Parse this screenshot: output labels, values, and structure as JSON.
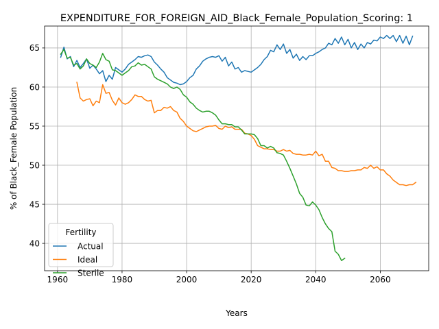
{
  "chart_data": {
    "type": "line",
    "title": "EXPENDITURE_FOR_FOREIGN_AID_Black_Female_Population_Scoring: 1",
    "xlabel": "Years",
    "ylabel": "% of Black_Female Population",
    "xlim": [
      1956,
      2075
    ],
    "ylim": [
      36.5,
      67.8
    ],
    "xticks": [
      1960,
      1980,
      2000,
      2020,
      2040,
      2060
    ],
    "yticks": [
      40,
      45,
      50,
      55,
      60,
      65
    ],
    "grid": true,
    "legend": {
      "title": "Fertility",
      "placement": "lower-left"
    },
    "series": [
      {
        "name": "Actual",
        "color": "#1f77b4",
        "points": [
          [
            1961,
            63.8
          ],
          [
            1962,
            65.1
          ],
          [
            1963,
            63.6
          ],
          [
            1964,
            63.9
          ],
          [
            1965,
            62.6
          ],
          [
            1966,
            63.4
          ],
          [
            1967,
            62.5
          ],
          [
            1968,
            63.0
          ],
          [
            1969,
            63.6
          ],
          [
            1970,
            62.4
          ],
          [
            1971,
            62.8
          ],
          [
            1972,
            62.3
          ],
          [
            1973,
            61.7
          ],
          [
            1974,
            62.1
          ],
          [
            1975,
            60.7
          ],
          [
            1976,
            61.5
          ],
          [
            1977,
            61.0
          ],
          [
            1978,
            62.5
          ],
          [
            1979,
            62.2
          ],
          [
            1980,
            61.9
          ],
          [
            1981,
            62.3
          ],
          [
            1982,
            62.9
          ],
          [
            1983,
            63.2
          ],
          [
            1984,
            63.5
          ],
          [
            1985,
            63.9
          ],
          [
            1986,
            63.8
          ],
          [
            1987,
            64.0
          ],
          [
            1988,
            64.1
          ],
          [
            1989,
            63.9
          ],
          [
            1990,
            63.2
          ],
          [
            1991,
            62.8
          ],
          [
            1992,
            62.3
          ],
          [
            1993,
            61.9
          ],
          [
            1994,
            61.2
          ],
          [
            1995,
            60.9
          ],
          [
            1996,
            60.6
          ],
          [
            1997,
            60.5
          ],
          [
            1998,
            60.3
          ],
          [
            1999,
            60.4
          ],
          [
            2000,
            60.7
          ],
          [
            2001,
            61.2
          ],
          [
            2002,
            61.5
          ],
          [
            2003,
            62.3
          ],
          [
            2004,
            62.7
          ],
          [
            2005,
            63.3
          ],
          [
            2006,
            63.6
          ],
          [
            2007,
            63.8
          ],
          [
            2008,
            63.9
          ],
          [
            2009,
            63.8
          ],
          [
            2010,
            64.0
          ],
          [
            2011,
            63.3
          ],
          [
            2012,
            63.8
          ],
          [
            2013,
            62.7
          ],
          [
            2014,
            63.2
          ],
          [
            2015,
            62.3
          ],
          [
            2016,
            62.5
          ],
          [
            2017,
            61.9
          ],
          [
            2018,
            62.1
          ],
          [
            2019,
            62.0
          ],
          [
            2020,
            61.9
          ],
          [
            2021,
            62.2
          ],
          [
            2022,
            62.5
          ],
          [
            2023,
            62.9
          ],
          [
            2024,
            63.5
          ],
          [
            2025,
            63.9
          ],
          [
            2026,
            64.7
          ],
          [
            2027,
            64.5
          ],
          [
            2028,
            65.4
          ],
          [
            2029,
            64.8
          ],
          [
            2030,
            65.5
          ],
          [
            2031,
            64.3
          ],
          [
            2032,
            64.8
          ],
          [
            2033,
            63.7
          ],
          [
            2034,
            64.2
          ],
          [
            2035,
            63.4
          ],
          [
            2036,
            63.9
          ],
          [
            2037,
            63.5
          ],
          [
            2038,
            64.0
          ],
          [
            2039,
            64.0
          ],
          [
            2040,
            64.3
          ],
          [
            2041,
            64.5
          ],
          [
            2042,
            64.8
          ],
          [
            2043,
            65.0
          ],
          [
            2044,
            65.6
          ],
          [
            2045,
            65.4
          ],
          [
            2046,
            66.2
          ],
          [
            2047,
            65.6
          ],
          [
            2048,
            66.4
          ],
          [
            2049,
            65.4
          ],
          [
            2050,
            66.1
          ],
          [
            2051,
            65.0
          ],
          [
            2052,
            65.7
          ],
          [
            2053,
            64.8
          ],
          [
            2054,
            65.5
          ],
          [
            2055,
            65.0
          ],
          [
            2056,
            65.7
          ],
          [
            2057,
            65.5
          ],
          [
            2058,
            66.0
          ],
          [
            2059,
            65.9
          ],
          [
            2060,
            66.4
          ],
          [
            2061,
            66.2
          ],
          [
            2062,
            66.6
          ],
          [
            2063,
            66.2
          ],
          [
            2064,
            66.6
          ],
          [
            2065,
            65.8
          ],
          [
            2066,
            66.6
          ],
          [
            2067,
            65.6
          ],
          [
            2068,
            66.5
          ],
          [
            2069,
            65.4
          ],
          [
            2070,
            66.5
          ]
        ]
      },
      {
        "name": "Ideal",
        "color": "#ff7f0e",
        "points": [
          [
            1966,
            60.6
          ],
          [
            1967,
            58.6
          ],
          [
            1968,
            58.2
          ],
          [
            1969,
            58.4
          ],
          [
            1970,
            58.5
          ],
          [
            1971,
            57.6
          ],
          [
            1972,
            58.2
          ],
          [
            1973,
            58.0
          ],
          [
            1974,
            60.3
          ],
          [
            1975,
            59.2
          ],
          [
            1976,
            59.3
          ],
          [
            1977,
            58.3
          ],
          [
            1978,
            57.7
          ],
          [
            1979,
            58.6
          ],
          [
            1980,
            58.0
          ],
          [
            1981,
            57.8
          ],
          [
            1982,
            58.0
          ],
          [
            1983,
            58.4
          ],
          [
            1984,
            59.0
          ],
          [
            1985,
            58.8
          ],
          [
            1986,
            58.8
          ],
          [
            1987,
            58.4
          ],
          [
            1988,
            58.2
          ],
          [
            1989,
            58.3
          ],
          [
            1990,
            56.7
          ],
          [
            1991,
            57.0
          ],
          [
            1992,
            57.0
          ],
          [
            1993,
            57.4
          ],
          [
            1994,
            57.3
          ],
          [
            1995,
            57.5
          ],
          [
            1996,
            57.0
          ],
          [
            1997,
            56.8
          ],
          [
            1998,
            56.0
          ],
          [
            1999,
            55.6
          ],
          [
            2000,
            55.0
          ],
          [
            2001,
            54.7
          ],
          [
            2002,
            54.4
          ],
          [
            2003,
            54.3
          ],
          [
            2004,
            54.5
          ],
          [
            2005,
            54.7
          ],
          [
            2006,
            54.9
          ],
          [
            2007,
            55.0
          ],
          [
            2008,
            55.0
          ],
          [
            2009,
            55.1
          ],
          [
            2010,
            54.7
          ],
          [
            2011,
            54.6
          ],
          [
            2012,
            55.0
          ],
          [
            2013,
            54.8
          ],
          [
            2014,
            54.9
          ],
          [
            2015,
            54.6
          ],
          [
            2016,
            54.6
          ],
          [
            2017,
            54.6
          ],
          [
            2018,
            54.1
          ],
          [
            2019,
            54.0
          ],
          [
            2020,
            53.8
          ],
          [
            2021,
            53.3
          ],
          [
            2022,
            52.5
          ],
          [
            2023,
            52.3
          ],
          [
            2024,
            52.1
          ],
          [
            2025,
            52.1
          ],
          [
            2026,
            52.0
          ],
          [
            2027,
            52.0
          ],
          [
            2028,
            51.8
          ],
          [
            2029,
            51.8
          ],
          [
            2030,
            52.0
          ],
          [
            2031,
            51.8
          ],
          [
            2032,
            51.9
          ],
          [
            2033,
            51.5
          ],
          [
            2034,
            51.4
          ],
          [
            2035,
            51.4
          ],
          [
            2036,
            51.3
          ],
          [
            2037,
            51.3
          ],
          [
            2038,
            51.4
          ],
          [
            2039,
            51.3
          ],
          [
            2040,
            51.8
          ],
          [
            2041,
            51.2
          ],
          [
            2042,
            51.4
          ],
          [
            2043,
            50.5
          ],
          [
            2044,
            50.5
          ],
          [
            2045,
            49.7
          ],
          [
            2046,
            49.6
          ],
          [
            2047,
            49.3
          ],
          [
            2048,
            49.3
          ],
          [
            2049,
            49.2
          ],
          [
            2050,
            49.2
          ],
          [
            2051,
            49.3
          ],
          [
            2052,
            49.3
          ],
          [
            2053,
            49.4
          ],
          [
            2054,
            49.4
          ],
          [
            2055,
            49.7
          ],
          [
            2056,
            49.6
          ],
          [
            2057,
            50.0
          ],
          [
            2058,
            49.6
          ],
          [
            2059,
            49.8
          ],
          [
            2060,
            49.4
          ],
          [
            2061,
            49.4
          ],
          [
            2062,
            48.9
          ],
          [
            2063,
            48.6
          ],
          [
            2064,
            48.1
          ],
          [
            2065,
            47.8
          ],
          [
            2066,
            47.5
          ],
          [
            2067,
            47.5
          ],
          [
            2068,
            47.4
          ],
          [
            2069,
            47.5
          ],
          [
            2070,
            47.5
          ],
          [
            2071,
            47.8
          ]
        ]
      },
      {
        "name": "Sterile",
        "color": "#2ca02c",
        "points": [
          [
            1961,
            64.2
          ],
          [
            1962,
            64.8
          ],
          [
            1963,
            63.7
          ],
          [
            1964,
            63.8
          ],
          [
            1965,
            62.8
          ],
          [
            1966,
            63.0
          ],
          [
            1967,
            62.3
          ],
          [
            1968,
            62.7
          ],
          [
            1969,
            63.6
          ],
          [
            1970,
            63.0
          ],
          [
            1971,
            62.8
          ],
          [
            1972,
            62.5
          ],
          [
            1973,
            63.2
          ],
          [
            1974,
            64.3
          ],
          [
            1975,
            63.5
          ],
          [
            1976,
            63.3
          ],
          [
            1977,
            62.2
          ],
          [
            1978,
            62.1
          ],
          [
            1979,
            61.8
          ],
          [
            1980,
            61.5
          ],
          [
            1981,
            61.8
          ],
          [
            1982,
            62.1
          ],
          [
            1983,
            62.6
          ],
          [
            1984,
            62.7
          ],
          [
            1985,
            63.1
          ],
          [
            1986,
            62.8
          ],
          [
            1987,
            62.9
          ],
          [
            1988,
            62.6
          ],
          [
            1989,
            62.3
          ],
          [
            1990,
            61.3
          ],
          [
            1991,
            61.0
          ],
          [
            1992,
            60.8
          ],
          [
            1993,
            60.6
          ],
          [
            1994,
            60.4
          ],
          [
            1995,
            60.0
          ],
          [
            1996,
            59.8
          ],
          [
            1997,
            60.0
          ],
          [
            1998,
            59.7
          ],
          [
            1999,
            59.0
          ],
          [
            2000,
            58.7
          ],
          [
            2001,
            58.1
          ],
          [
            2002,
            57.8
          ],
          [
            2003,
            57.3
          ],
          [
            2004,
            57.0
          ],
          [
            2005,
            56.8
          ],
          [
            2006,
            56.9
          ],
          [
            2007,
            56.9
          ],
          [
            2008,
            56.7
          ],
          [
            2009,
            56.4
          ],
          [
            2010,
            55.8
          ],
          [
            2011,
            55.3
          ],
          [
            2012,
            55.3
          ],
          [
            2013,
            55.2
          ],
          [
            2014,
            55.2
          ],
          [
            2015,
            54.9
          ],
          [
            2016,
            54.9
          ],
          [
            2017,
            54.5
          ],
          [
            2018,
            54.0
          ],
          [
            2019,
            54.0
          ],
          [
            2020,
            54.0
          ],
          [
            2021,
            53.9
          ],
          [
            2022,
            53.4
          ],
          [
            2023,
            52.5
          ],
          [
            2024,
            52.5
          ],
          [
            2025,
            52.2
          ],
          [
            2026,
            52.4
          ],
          [
            2027,
            52.2
          ],
          [
            2028,
            51.6
          ],
          [
            2029,
            51.5
          ],
          [
            2030,
            51.3
          ],
          [
            2031,
            50.5
          ],
          [
            2032,
            49.6
          ],
          [
            2033,
            48.6
          ],
          [
            2034,
            47.6
          ],
          [
            2035,
            46.4
          ],
          [
            2036,
            45.9
          ],
          [
            2037,
            44.9
          ],
          [
            2038,
            44.8
          ],
          [
            2039,
            45.3
          ],
          [
            2040,
            44.9
          ],
          [
            2041,
            44.3
          ],
          [
            2042,
            43.3
          ],
          [
            2043,
            42.5
          ],
          [
            2044,
            41.9
          ],
          [
            2045,
            41.5
          ],
          [
            2046,
            39.0
          ],
          [
            2047,
            38.6
          ],
          [
            2048,
            37.8
          ],
          [
            2049,
            38.1
          ]
        ]
      }
    ]
  }
}
